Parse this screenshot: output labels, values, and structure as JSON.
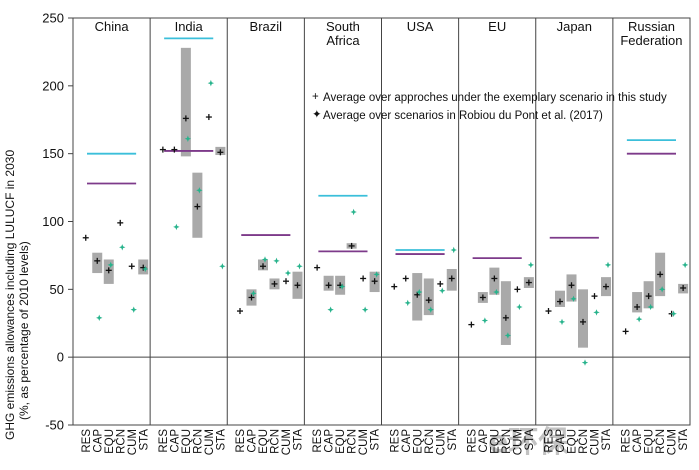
{
  "chart_data": {
    "type": "scatter",
    "ylabel_lines": [
      "GHG emissions allowances including LULUCF in 2030",
      "(%, as percentage of 2010 levels)"
    ],
    "ylim": [
      -50,
      250
    ],
    "yticks": [
      -50,
      0,
      50,
      100,
      150,
      200,
      250
    ],
    "methods": [
      "RES",
      "CAP",
      "EQU",
      "RCN",
      "CUM",
      "STA"
    ],
    "legend": {
      "study": "Average over approches under the exemplary scenario in this study",
      "robiou": "Average over scenarios in Robiou du Pont et al. (2017)"
    },
    "colors": {
      "range_box": "#a9a9a9",
      "study_marker": "#111111",
      "robiou_marker": "#27b38c",
      "cyan_line": "#3bbfda",
      "purple_line": "#7d3a8a",
      "frame": "#444444"
    },
    "regions": [
      {
        "name": [
          "China"
        ],
        "cyan": 150,
        "purple": 128,
        "ranges": [
          null,
          [
            62,
            77
          ],
          [
            54,
            72
          ],
          null,
          null,
          [
            61,
            72
          ]
        ],
        "study": [
          88,
          71,
          64,
          99,
          67,
          66
        ],
        "robiou": [
          null,
          29,
          68,
          81,
          35,
          65
        ]
      },
      {
        "name": [
          "India"
        ],
        "cyan": 235,
        "purple": 152,
        "ranges": [
          null,
          null,
          [
            148,
            228
          ],
          [
            88,
            136
          ],
          null,
          [
            149,
            155
          ]
        ],
        "study": [
          153,
          153,
          176,
          111,
          177,
          151
        ],
        "robiou": [
          null,
          96,
          161,
          123,
          202,
          67
        ]
      },
      {
        "name": [
          "Brazil"
        ],
        "cyan": null,
        "purple": 90,
        "ranges": [
          null,
          [
            38,
            50
          ],
          [
            64,
            72
          ],
          [
            50,
            58
          ],
          null,
          [
            43,
            63
          ]
        ],
        "study": [
          34,
          44,
          67,
          54,
          56,
          53
        ],
        "robiou": [
          null,
          47,
          72,
          71,
          62,
          67
        ]
      },
      {
        "name": [
          "South",
          "Africa"
        ],
        "cyan": 119,
        "purple": 78,
        "ranges": [
          null,
          [
            49,
            60
          ],
          [
            46,
            60
          ],
          [
            80,
            84
          ],
          null,
          [
            48,
            63
          ]
        ],
        "study": [
          66,
          53,
          53,
          82,
          58,
          56
        ],
        "robiou": [
          null,
          35,
          52,
          107,
          35,
          61
        ]
      },
      {
        "name": [
          "USA"
        ],
        "cyan": 79,
        "purple": 76,
        "ranges": [
          null,
          null,
          [
            27,
            62
          ],
          [
            31,
            58
          ],
          null,
          [
            49,
            65
          ]
        ],
        "study": [
          52,
          58,
          46,
          42,
          54,
          58
        ],
        "robiou": [
          null,
          40,
          48,
          35,
          49,
          79
        ]
      },
      {
        "name": [
          "EU"
        ],
        "cyan": null,
        "purple": 73,
        "ranges": [
          null,
          [
            40,
            48
          ],
          [
            46,
            66
          ],
          [
            9,
            56
          ],
          null,
          [
            51,
            59
          ]
        ],
        "study": [
          24,
          44,
          58,
          29,
          50,
          55
        ],
        "robiou": [
          null,
          27,
          48,
          16,
          37,
          68
        ]
      },
      {
        "name": [
          "Japan"
        ],
        "cyan": null,
        "purple": 88,
        "ranges": [
          null,
          [
            37,
            49
          ],
          [
            41,
            61
          ],
          [
            7,
            50
          ],
          null,
          [
            45,
            59
          ]
        ],
        "study": [
          34,
          41,
          53,
          26,
          45,
          52
        ],
        "robiou": [
          null,
          26,
          43,
          -4,
          33,
          68
        ]
      },
      {
        "name": [
          "Russian",
          "Federation"
        ],
        "cyan": 160,
        "purple": 150,
        "ranges": [
          null,
          [
            33,
            48
          ],
          [
            36,
            56
          ],
          [
            45,
            77
          ],
          null,
          [
            47,
            54
          ]
        ],
        "study": [
          19,
          37,
          45,
          61,
          32,
          51
        ],
        "robiou": [
          null,
          28,
          37,
          50,
          32,
          68
        ]
      }
    ]
  },
  "watermark": "e环保"
}
